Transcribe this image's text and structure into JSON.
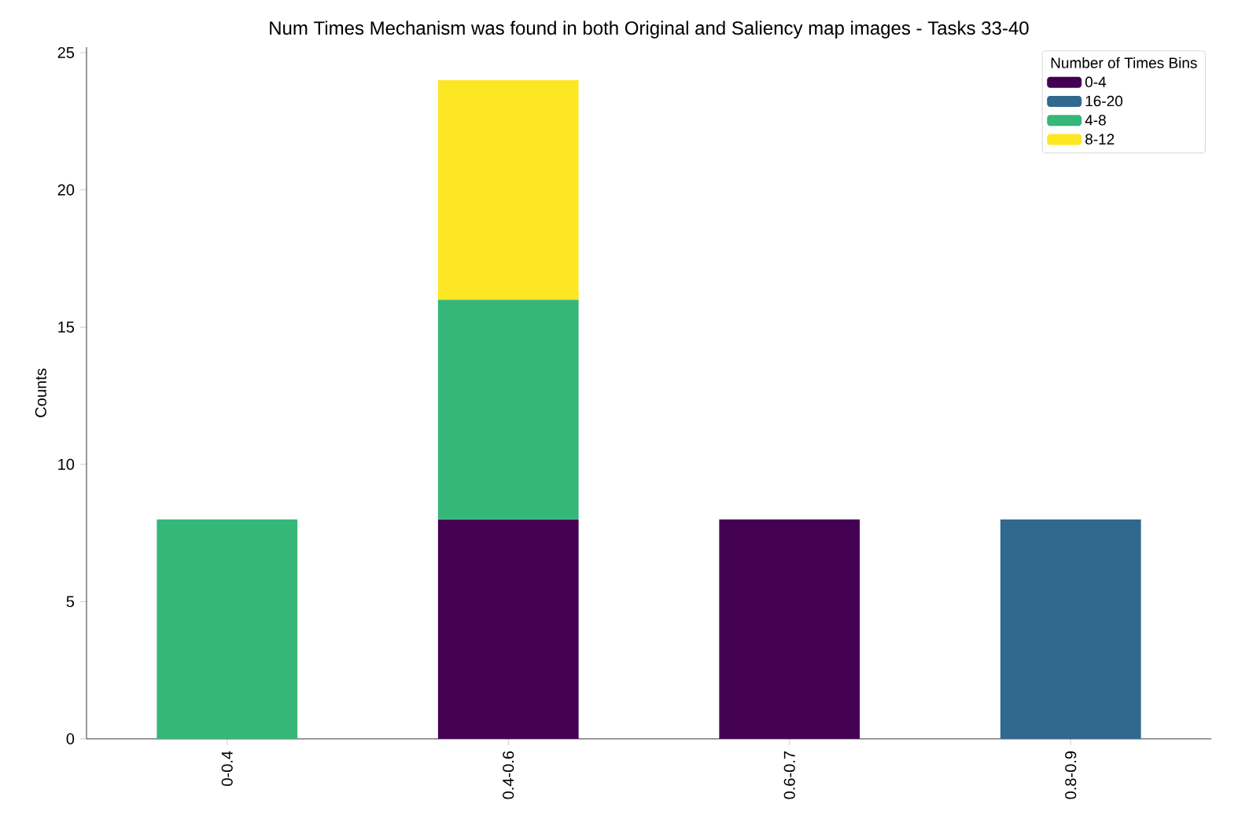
{
  "chart_data": {
    "type": "bar",
    "stacked": true,
    "title": "Num Times Mechanism was found in both Original and Saliency map images - Tasks 33-40",
    "ylabel": "Counts",
    "legend_title": "Number of Times Bins",
    "legend": "top right",
    "categories": [
      "0-0.4",
      "0.4-0.6",
      "0.6-0.7",
      "0.8-0.9"
    ],
    "series": [
      {
        "name": "0-4",
        "color": "#440154",
        "values": [
          null,
          8,
          8,
          null
        ]
      },
      {
        "name": "16-20",
        "color": "#31688e",
        "values": [
          null,
          null,
          null,
          8
        ]
      },
      {
        "name": "4-8",
        "color": "#35b779",
        "values": [
          8,
          8,
          null,
          null
        ]
      },
      {
        "name": "8-12",
        "color": "#fde725",
        "values": [
          null,
          8,
          null,
          null
        ]
      }
    ],
    "ylim": [
      0,
      25.2
    ],
    "yticks": [
      0,
      5,
      10,
      15,
      20,
      25
    ]
  }
}
